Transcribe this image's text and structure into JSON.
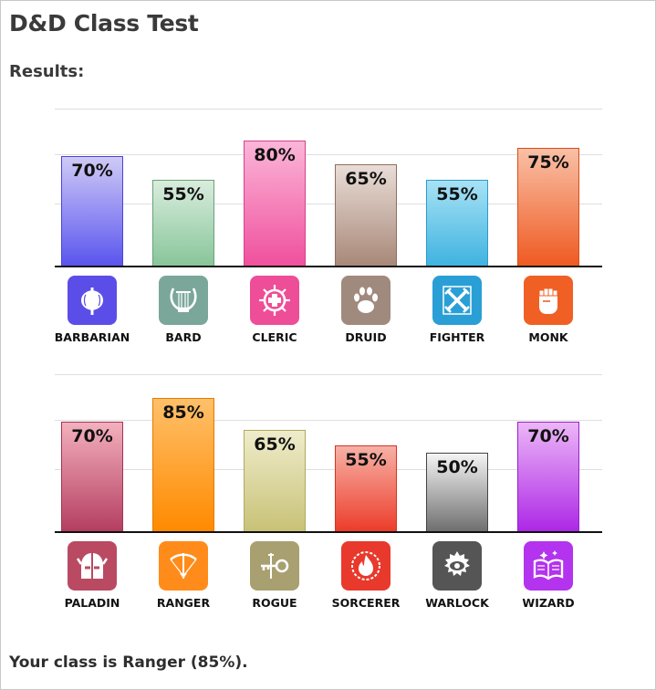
{
  "app": {
    "title": "D&D Class Test",
    "results_label": "Results:",
    "result_text": "Your class is Ranger (85%)."
  },
  "chart_data": [
    {
      "type": "bar",
      "categories": [
        "BARBARIAN",
        "BARD",
        "CLERIC",
        "DRUID",
        "FIGHTER",
        "MONK"
      ],
      "values": [
        70,
        55,
        80,
        65,
        55,
        75
      ],
      "value_labels": [
        "70%",
        "55%",
        "80%",
        "65%",
        "55%",
        "75%"
      ],
      "icons": [
        "axe-icon",
        "lyre-icon",
        "holy-symbol-icon",
        "paw-icon",
        "crossed-swords-icon",
        "fist-icon"
      ],
      "colors": [
        {
          "top": "#cfcaf6",
          "bottom": "#5a55ee",
          "border": "#4a44d8",
          "icon": "#5b4ee8"
        },
        {
          "top": "#d9eddd",
          "bottom": "#88c59a",
          "border": "#6aa17a",
          "icon": "#7aa79a"
        },
        {
          "top": "#fbb6d8",
          "bottom": "#f0509d",
          "border": "#d6418a",
          "icon": "#ee4d98"
        },
        {
          "top": "#e9ddd7",
          "bottom": "#a88878",
          "border": "#8e6f60",
          "icon": "#a08a7e"
        },
        {
          "top": "#a8e2f5",
          "bottom": "#3fb3e0",
          "border": "#2b9cc9",
          "icon": "#2a9fd6"
        },
        {
          "top": "#f9c0a6",
          "bottom": "#ef5a22",
          "border": "#d84e1a",
          "icon": "#f06024"
        }
      ],
      "ylim": [
        0,
        100
      ]
    },
    {
      "type": "bar",
      "categories": [
        "PALADIN",
        "RANGER",
        "ROGUE",
        "SORCERER",
        "WARLOCK",
        "WIZARD"
      ],
      "values": [
        70,
        85,
        65,
        55,
        50,
        70
      ],
      "value_labels": [
        "70%",
        "85%",
        "65%",
        "55%",
        "50%",
        "70%"
      ],
      "icons": [
        "helmet-icon",
        "bow-icon",
        "key-icon",
        "flame-icon",
        "eye-icon",
        "spellbook-icon"
      ],
      "colors": [
        {
          "top": "#f3b0bd",
          "bottom": "#b43e60",
          "border": "#a23456",
          "icon": "#b94a62"
        },
        {
          "top": "#ffc06a",
          "bottom": "#ff8a00",
          "border": "#e67a00",
          "icon": "#ff8c1a"
        },
        {
          "top": "#efeccb",
          "bottom": "#c8c277",
          "border": "#b0aa5e",
          "icon": "#a8a070"
        },
        {
          "top": "#f7b1a6",
          "bottom": "#ec3d2b",
          "border": "#d43424",
          "icon": "#e8392c"
        },
        {
          "top": "#f4f4f4",
          "bottom": "#6f6f6f",
          "border": "#444444",
          "icon": "#555555"
        },
        {
          "top": "#ecb6f7",
          "bottom": "#ad28e6",
          "border": "#9620cc",
          "icon": "#b333ee"
        }
      ],
      "ylim": [
        0,
        100
      ]
    }
  ]
}
